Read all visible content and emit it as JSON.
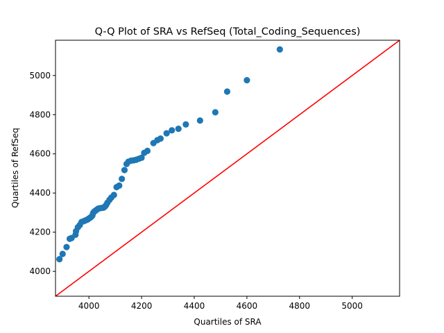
{
  "chart_data": {
    "type": "scatter",
    "title": "Q-Q Plot of SRA vs RefSeq (Total_Coding_Sequences)",
    "xlabel": "Quartiles of SRA",
    "ylabel": "Quartiles of RefSeq",
    "xlim": [
      3873,
      5180
    ],
    "ylim": [
      3873,
      5180
    ],
    "xticks": [
      4000,
      4200,
      4400,
      4600,
      4800,
      5000
    ],
    "yticks": [
      4000,
      4200,
      4400,
      4600,
      4800,
      5000
    ],
    "grid": false,
    "point_color": "#1f77b4",
    "line_color": "#ff0000",
    "reference_line": {
      "from": [
        3873,
        3873
      ],
      "to": [
        5180,
        5180
      ]
    },
    "points": [
      [
        3888,
        4062
      ],
      [
        3900,
        4089
      ],
      [
        3915,
        4124
      ],
      [
        3927,
        4166
      ],
      [
        3934,
        4170
      ],
      [
        3949,
        4187
      ],
      [
        3951,
        4205
      ],
      [
        3958,
        4225
      ],
      [
        3965,
        4236
      ],
      [
        3972,
        4252
      ],
      [
        3980,
        4256
      ],
      [
        3988,
        4261
      ],
      [
        3995,
        4265
      ],
      [
        4000,
        4270
      ],
      [
        4005,
        4274
      ],
      [
        4010,
        4280
      ],
      [
        4013,
        4285
      ],
      [
        4016,
        4298
      ],
      [
        4020,
        4305
      ],
      [
        4025,
        4310
      ],
      [
        4030,
        4315
      ],
      [
        4035,
        4320
      ],
      [
        4040,
        4322
      ],
      [
        4048,
        4324
      ],
      [
        4055,
        4325
      ],
      [
        4060,
        4330
      ],
      [
        4065,
        4338
      ],
      [
        4070,
        4350
      ],
      [
        4078,
        4365
      ],
      [
        4085,
        4377
      ],
      [
        4095,
        4390
      ],
      [
        4105,
        4430
      ],
      [
        4115,
        4438
      ],
      [
        4125,
        4472
      ],
      [
        4135,
        4517
      ],
      [
        4143,
        4548
      ],
      [
        4150,
        4560
      ],
      [
        4160,
        4565
      ],
      [
        4170,
        4567
      ],
      [
        4180,
        4570
      ],
      [
        4190,
        4575
      ],
      [
        4200,
        4580
      ],
      [
        4210,
        4605
      ],
      [
        4222,
        4615
      ],
      [
        4245,
        4655
      ],
      [
        4260,
        4670
      ],
      [
        4272,
        4678
      ],
      [
        4295,
        4705
      ],
      [
        4315,
        4720
      ],
      [
        4340,
        4728
      ],
      [
        4368,
        4750
      ],
      [
        4422,
        4770
      ],
      [
        4480,
        4812
      ],
      [
        4525,
        4918
      ],
      [
        4600,
        4976
      ],
      [
        4725,
        5133
      ]
    ]
  }
}
